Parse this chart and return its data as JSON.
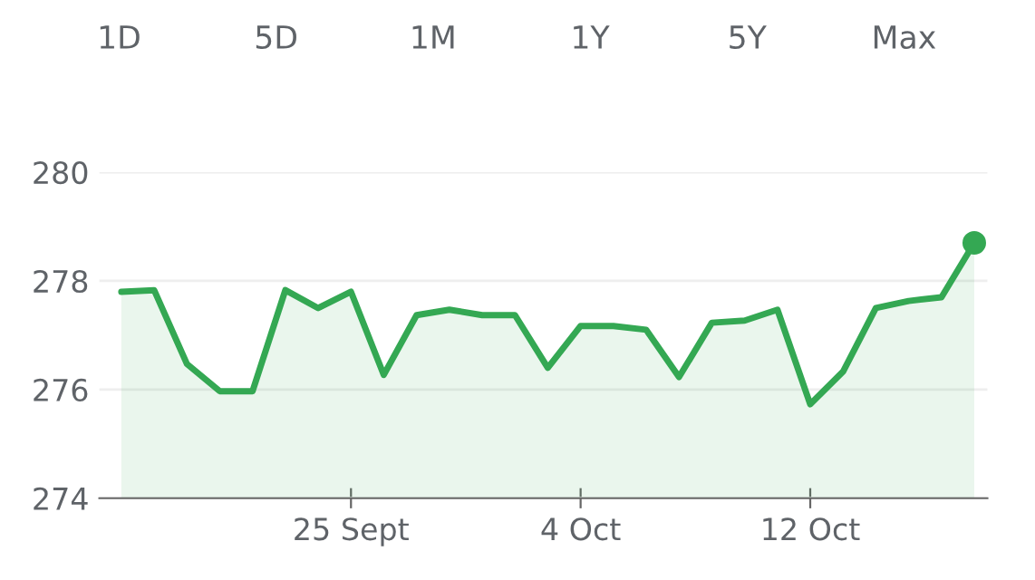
{
  "chart_data": {
    "type": "area",
    "annotations": [
      "1D",
      "5D",
      "1M",
      "1Y",
      "5Y",
      "Max"
    ],
    "categories": [
      null,
      null,
      null,
      null,
      null,
      null,
      null,
      "25 Sept",
      null,
      null,
      null,
      null,
      null,
      null,
      "4 Oct",
      null,
      null,
      null,
      null,
      null,
      null,
      "12 Oct",
      null,
      null,
      null,
      null,
      null
    ],
    "series": [
      {
        "color": "#34a853",
        "values": [
          277.8,
          277.83,
          276.47,
          275.97,
          275.97,
          277.83,
          277.5,
          277.8,
          276.27,
          277.37,
          277.47,
          277.37,
          277.37,
          276.4,
          277.17,
          277.17,
          277.1,
          276.23,
          277.23,
          277.27,
          277.47,
          275.73,
          276.33,
          277.5,
          277.63,
          277.7,
          278.7
        ]
      },
      {
        "type": "scatter",
        "color": "#34a853",
        "values": [
          null,
          null,
          null,
          null,
          null,
          null,
          null,
          null,
          null,
          null,
          null,
          null,
          null,
          null,
          null,
          null,
          null,
          null,
          null,
          null,
          null,
          null,
          null,
          null,
          null,
          null,
          278.7
        ],
        "marker": "circle"
      }
    ],
    "ylim": [
      274,
      280
    ],
    "yticks": [
      274,
      276,
      278,
      280
    ],
    "grid": "y"
  }
}
